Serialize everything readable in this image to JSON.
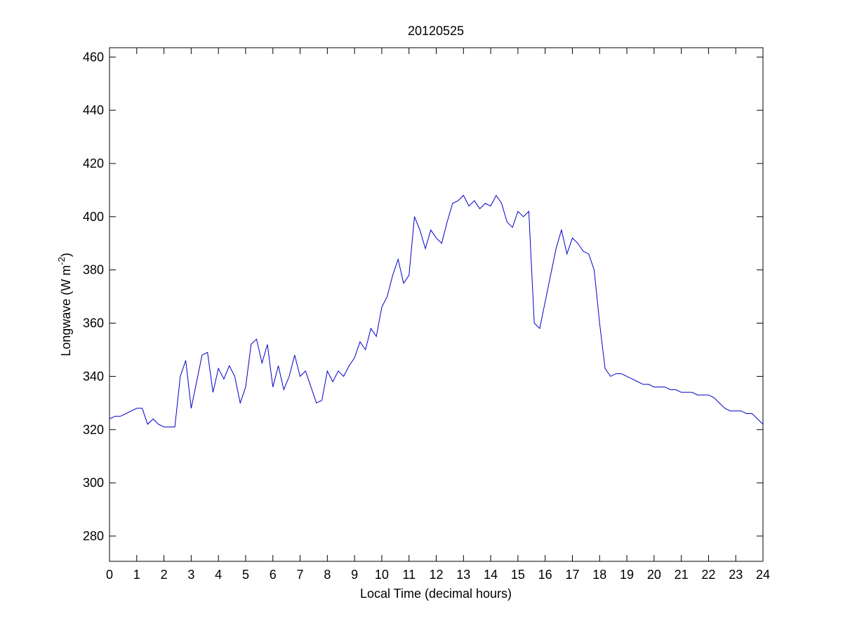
{
  "chart_data": {
    "type": "line",
    "title": "20120525",
    "xlabel": "Local Time (decimal hours)",
    "ylabel": {
      "text": "Longwave (W m",
      "superscript": "-2",
      "suffix": ")"
    },
    "xlim": [
      0,
      24
    ],
    "ylim": [
      270.5,
      463.5
    ],
    "xticks": [
      0,
      1,
      2,
      3,
      4,
      5,
      6,
      7,
      8,
      9,
      10,
      11,
      12,
      13,
      14,
      15,
      16,
      17,
      18,
      19,
      20,
      21,
      22,
      23,
      24
    ],
    "yticks": [
      280,
      300,
      320,
      340,
      360,
      380,
      400,
      420,
      440,
      460
    ],
    "grid": false,
    "x": [
      0,
      0.2,
      0.4,
      0.6,
      0.8,
      1,
      1.2,
      1.4,
      1.6,
      1.8,
      2,
      2.2,
      2.4,
      2.6,
      2.8,
      3,
      3.2,
      3.4,
      3.6,
      3.8,
      4,
      4.2,
      4.4,
      4.6,
      4.8,
      5,
      5.2,
      5.4,
      5.6,
      5.8,
      6,
      6.2,
      6.4,
      6.6,
      6.8,
      7,
      7.2,
      7.4,
      7.6,
      7.8,
      8,
      8.2,
      8.4,
      8.6,
      8.8,
      9,
      9.2,
      9.4,
      9.6,
      9.8,
      10,
      10.2,
      10.4,
      10.6,
      10.8,
      11,
      11.2,
      11.4,
      11.6,
      11.8,
      12,
      12.2,
      12.4,
      12.6,
      12.8,
      13,
      13.2,
      13.4,
      13.6,
      13.8,
      14,
      14.2,
      14.4,
      14.6,
      14.8,
      15,
      15.2,
      15.4,
      15.6,
      15.8,
      16,
      16.2,
      16.4,
      16.6,
      16.8,
      17,
      17.2,
      17.4,
      17.6,
      17.8,
      18,
      18.2,
      18.4,
      18.6,
      18.8,
      19,
      19.2,
      19.4,
      19.6,
      19.8,
      20,
      20.2,
      20.4,
      20.6,
      20.8,
      21,
      21.2,
      21.4,
      21.6,
      21.8,
      22,
      22.2,
      22.4,
      22.6,
      22.8,
      23,
      23.2,
      23.4,
      23.6,
      23.8,
      24
    ],
    "series": [
      {
        "name": "Longwave",
        "color": "#0000c8",
        "values": [
          324,
          325,
          325,
          326,
          327,
          328,
          328,
          322,
          324,
          322,
          321,
          321,
          321,
          340,
          346,
          328,
          338,
          348,
          349,
          334,
          343,
          339,
          344,
          340,
          330,
          336,
          352,
          354,
          345,
          352,
          336,
          344,
          335,
          340,
          348,
          340,
          342,
          336,
          330,
          331,
          342,
          338,
          342,
          340,
          344,
          347,
          353,
          350,
          358,
          355,
          366,
          370,
          378,
          384,
          375,
          378,
          400,
          395,
          388,
          395,
          392,
          390,
          398,
          405,
          406,
          408,
          404,
          406,
          403,
          405,
          404,
          408,
          405,
          398,
          396,
          402,
          400,
          402,
          360,
          358,
          368,
          378,
          388,
          395,
          386,
          392,
          390,
          387,
          386,
          380,
          360,
          343,
          340,
          341,
          341,
          340,
          339,
          338,
          337,
          337,
          336,
          336,
          336,
          335,
          335,
          334,
          334,
          334,
          333,
          333,
          333,
          332,
          330,
          328,
          327,
          327,
          327,
          326,
          326,
          324,
          322
        ]
      }
    ]
  }
}
